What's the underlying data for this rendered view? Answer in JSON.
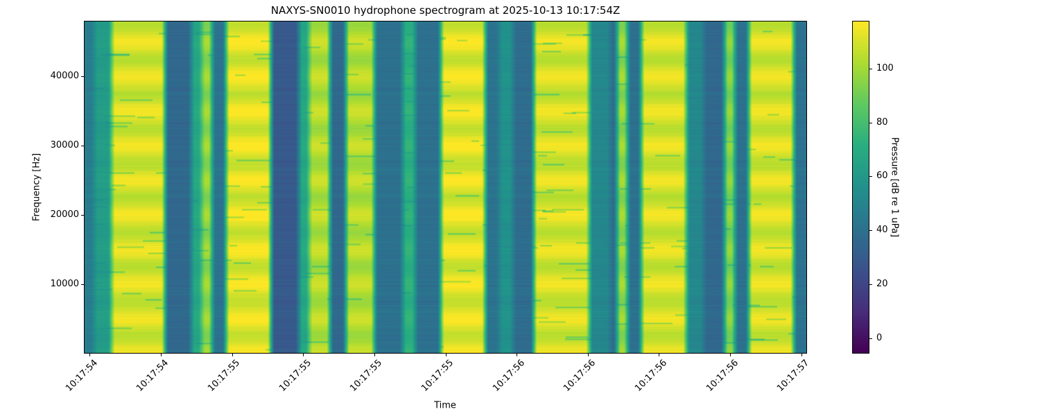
{
  "chart_data": {
    "type": "heatmap",
    "title": "NAXYS-SN0010 hydrophone spectrogram at 2025-10-13 10:17:54Z",
    "xlabel": "Time",
    "ylabel": "Frequency [Hz]",
    "colorbar_label": "Pressure [dB re 1 uPa]",
    "colormap": "viridis",
    "xlim_seconds_after_10_17": [
      54.48,
      57.02
    ],
    "x_ticks": {
      "values_seconds_after_10_17": [
        54.5,
        54.75,
        55.0,
        55.25,
        55.5,
        55.75,
        56.0,
        56.25,
        56.5,
        56.75,
        57.0
      ],
      "labels": [
        "10:17:54",
        "10:17:54",
        "10:17:55",
        "10:17:55",
        "10:17:55",
        "10:17:55",
        "10:17:56",
        "10:17:56",
        "10:17:56",
        "10:17:56",
        "10:17:57"
      ]
    },
    "ylim": [
      0,
      48000
    ],
    "y_ticks": {
      "values": [
        10000,
        20000,
        30000,
        40000
      ],
      "labels": [
        "10000",
        "20000",
        "30000",
        "40000"
      ]
    },
    "clim": [
      -5.7,
      117.7
    ],
    "colorbar_ticks": {
      "values": [
        0,
        20,
        40,
        60,
        80,
        100
      ],
      "labels": [
        "0",
        "20",
        "40",
        "60",
        "80",
        "100"
      ]
    },
    "time_segments_mean_level_db": [
      {
        "t0": 54.48,
        "t1": 54.515,
        "db": 50
      },
      {
        "t0": 54.515,
        "t1": 54.576,
        "db": 65
      },
      {
        "t0": 54.576,
        "t1": 54.763,
        "db": 110
      },
      {
        "t0": 54.763,
        "t1": 54.856,
        "db": 40
      },
      {
        "t0": 54.856,
        "t1": 54.892,
        "db": 70
      },
      {
        "t0": 54.892,
        "t1": 54.929,
        "db": 98
      },
      {
        "t0": 54.929,
        "t1": 54.978,
        "db": 45
      },
      {
        "t0": 54.978,
        "t1": 55.136,
        "db": 112
      },
      {
        "t0": 55.136,
        "t1": 55.233,
        "db": 33
      },
      {
        "t0": 55.233,
        "t1": 55.27,
        "db": 70
      },
      {
        "t0": 55.27,
        "t1": 55.343,
        "db": 104
      },
      {
        "t0": 55.343,
        "t1": 55.399,
        "db": 40
      },
      {
        "t0": 55.399,
        "t1": 55.501,
        "db": 104
      },
      {
        "t0": 55.501,
        "t1": 55.599,
        "db": 44
      },
      {
        "t0": 55.599,
        "t1": 55.643,
        "db": 75
      },
      {
        "t0": 55.643,
        "t1": 55.733,
        "db": 44
      },
      {
        "t0": 55.733,
        "t1": 55.891,
        "db": 112
      },
      {
        "t0": 55.891,
        "t1": 55.94,
        "db": 45
      },
      {
        "t0": 55.94,
        "t1": 55.989,
        "db": 60
      },
      {
        "t0": 55.989,
        "t1": 56.062,
        "db": 42
      },
      {
        "t0": 56.062,
        "t1": 56.257,
        "db": 110
      },
      {
        "t0": 56.257,
        "t1": 56.33,
        "db": 55
      },
      {
        "t0": 56.33,
        "t1": 56.354,
        "db": 42
      },
      {
        "t0": 56.354,
        "t1": 56.391,
        "db": 98
      },
      {
        "t0": 56.391,
        "t1": 56.44,
        "db": 44
      },
      {
        "t0": 56.44,
        "t1": 56.598,
        "db": 110
      },
      {
        "t0": 56.598,
        "t1": 56.659,
        "db": 55
      },
      {
        "t0": 56.659,
        "t1": 56.732,
        "db": 40
      },
      {
        "t0": 56.732,
        "t1": 56.769,
        "db": 95
      },
      {
        "t0": 56.769,
        "t1": 56.817,
        "db": 44
      },
      {
        "t0": 56.817,
        "t1": 56.976,
        "db": 110
      },
      {
        "t0": 56.976,
        "t1": 57.022,
        "db": 45
      }
    ]
  }
}
